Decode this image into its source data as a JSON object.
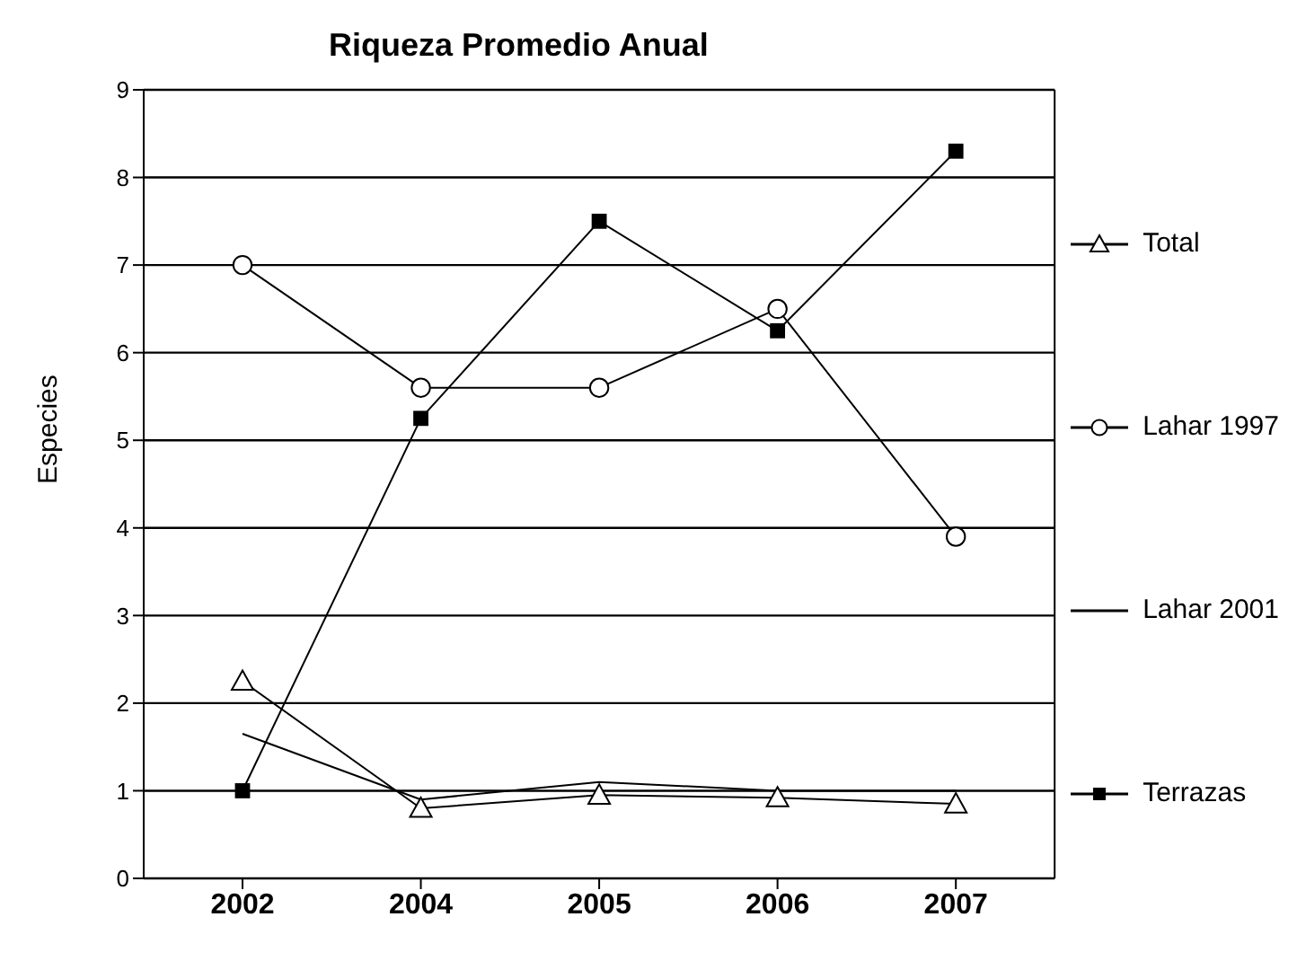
{
  "chart_data": {
    "type": "line",
    "title": "Riqueza Promedio Anual",
    "ylabel": "Especies",
    "categories": [
      "2002",
      "2004",
      "2005",
      "2006",
      "2007"
    ],
    "ylim": [
      0,
      9
    ],
    "yticks": [
      0,
      1,
      2,
      3,
      4,
      5,
      6,
      7,
      8,
      9
    ],
    "grid": "y",
    "legend": "right",
    "series": [
      {
        "name": "Total",
        "color": "#000000",
        "marker": "triangle",
        "values": [
          2.25,
          0.8,
          0.95,
          0.92,
          0.85
        ]
      },
      {
        "name": "Lahar 1997",
        "color": "#000000",
        "marker": "circle",
        "values": [
          7.0,
          5.6,
          5.6,
          6.5,
          3.9
        ]
      },
      {
        "name": "Lahar 2001",
        "color": "#000000",
        "marker": "none",
        "values": [
          1.65,
          0.9,
          1.1,
          1.0,
          1.0
        ]
      },
      {
        "name": "Terrazas",
        "color": "#000000",
        "marker": "square",
        "values": [
          1.0,
          5.25,
          7.5,
          6.25,
          8.3
        ]
      }
    ]
  }
}
